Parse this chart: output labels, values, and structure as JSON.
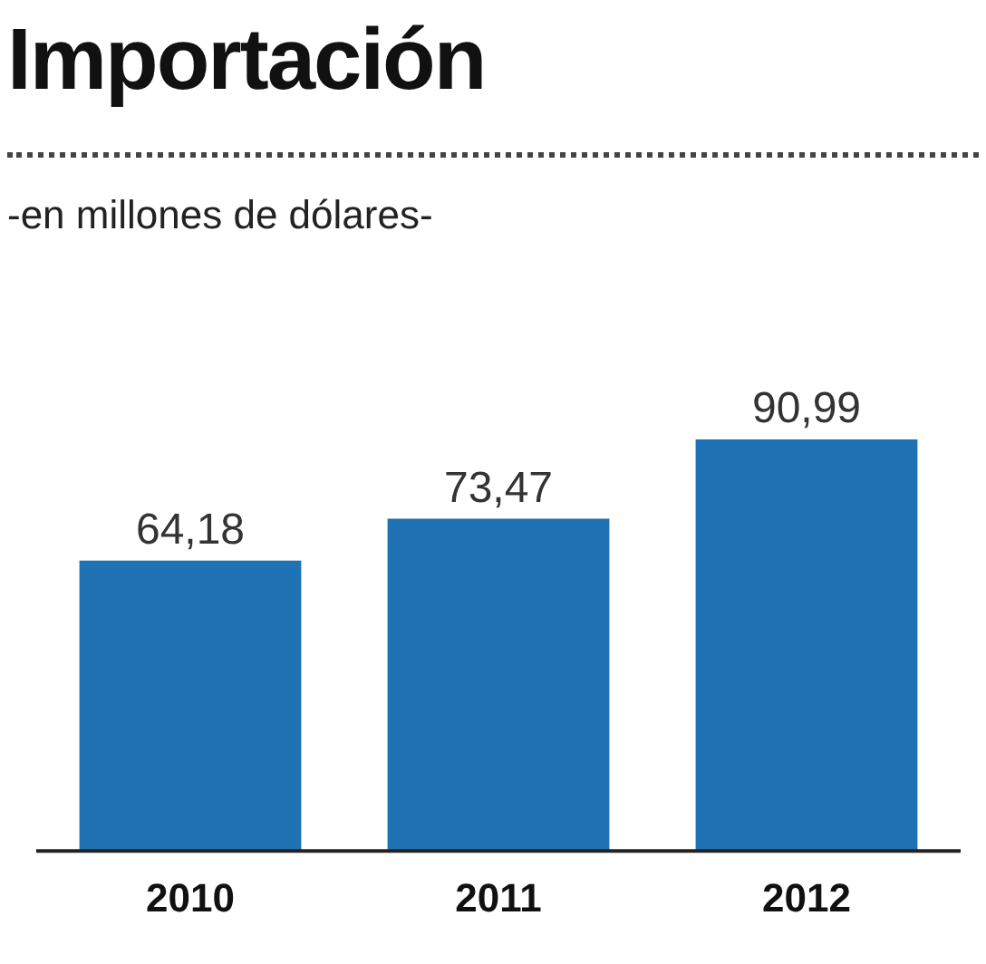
{
  "chart_data": {
    "type": "bar",
    "title": "Importación",
    "subtitle": "-en millones de dólares-",
    "categories": [
      "2010",
      "2011",
      "2012"
    ],
    "values": [
      64.18,
      73.47,
      90.99
    ],
    "value_labels": [
      "64,18",
      "73,47",
      "90,99"
    ],
    "color": "#1f72b4",
    "grid": false,
    "legend": false
  }
}
